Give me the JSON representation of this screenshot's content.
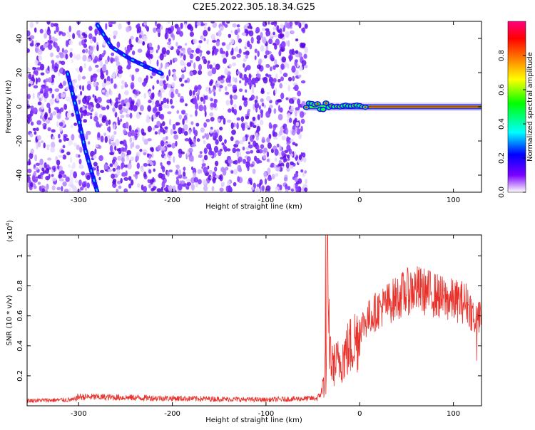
{
  "title": "C2E5.2022.305.18.34.G25",
  "chart_data": [
    {
      "type": "heatmap",
      "xlabel": "Height of straight line (km)",
      "ylabel": "Frequency (Hz)",
      "xlim": [
        -355,
        130
      ],
      "ylim": [
        -50,
        50
      ],
      "xticks": [
        -300,
        -200,
        -100,
        0,
        100
      ],
      "yticks": [
        -40,
        -20,
        0,
        20,
        40
      ],
      "xtick_labels": [
        "-300",
        "-200",
        "-100",
        "0",
        "100"
      ],
      "ytick_labels": [
        "-40",
        "-20",
        "0",
        "20",
        "40"
      ],
      "noise_region_x": [
        -355,
        -57
      ],
      "signal_line": {
        "x": [
          -57,
          130
        ],
        "y": 0
      },
      "bright_tracks": [
        {
          "x": [
            -312,
            -303,
            -293,
            -280
          ],
          "y": [
            20,
            0,
            -25,
            -50
          ]
        },
        {
          "x": [
            -280,
            -265,
            -245,
            -210
          ],
          "y": [
            48,
            35,
            28,
            19
          ]
        }
      ],
      "colorbar": {
        "label": "Normalized spectral amplitude",
        "range": [
          0,
          1
        ],
        "ticks": [
          0.0,
          0.2,
          0.4,
          0.6,
          0.8
        ],
        "tick_labels": [
          "0.0",
          "0.2",
          "0.4",
          "0.6",
          "0.8"
        ],
        "colormap": [
          "#ffffff",
          "#7a00ff",
          "#0000ff",
          "#00ffff",
          "#00ff00",
          "#ffff00",
          "#ff8000",
          "#ff0000",
          "#ff0080"
        ]
      }
    },
    {
      "type": "line",
      "xlabel": "Height of straight line (km)",
      "ylabel": "SNR (10 * v/v)",
      "scale_label": "(x10",
      "scale_exp": "4",
      "scale_close": ")",
      "xlim": [
        -355,
        130
      ],
      "ylim": [
        0,
        1.14
      ],
      "xticks": [
        -300,
        -200,
        -100,
        0,
        100
      ],
      "yticks": [
        0.2,
        0.4,
        0.6,
        0.8,
        1.0
      ],
      "xtick_labels": [
        "-300",
        "-200",
        "-100",
        "0",
        "100"
      ],
      "ytick_labels": [
        "0.2",
        "0.4",
        "0.6",
        "0.8",
        "1"
      ],
      "color": "#e8312a",
      "envelope": {
        "x": [
          -355,
          -305,
          -300,
          -100,
          -45,
          -40,
          -36,
          -35,
          -30,
          -20,
          -10,
          0,
          10,
          20,
          30,
          40,
          50,
          60,
          70,
          80,
          90,
          100,
          110,
          115,
          120,
          125,
          130
        ],
        "y": [
          0.035,
          0.04,
          0.06,
          0.04,
          0.05,
          0.1,
          0.3,
          0.75,
          0.3,
          0.35,
          0.45,
          0.55,
          0.62,
          0.68,
          0.72,
          0.76,
          0.8,
          0.82,
          0.8,
          0.78,
          0.75,
          0.74,
          0.73,
          0.72,
          0.65,
          0.6,
          0.62
        ]
      }
    }
  ]
}
